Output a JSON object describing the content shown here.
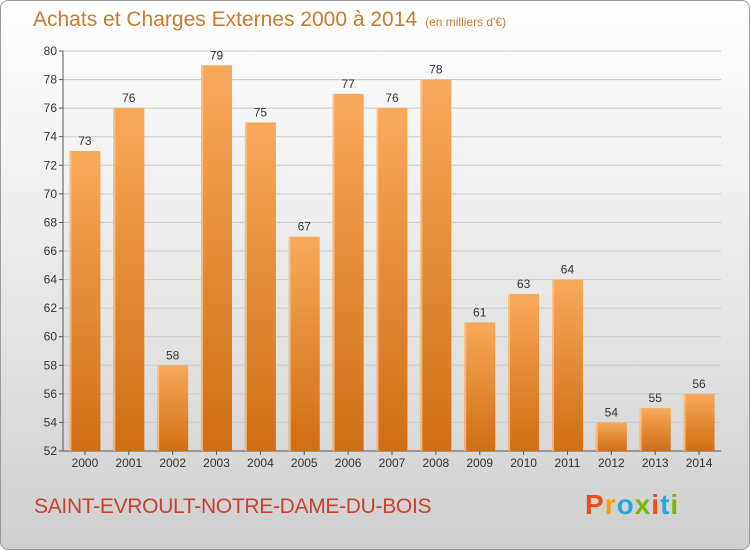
{
  "header": {
    "title": "Achats et Charges Externes 2000 à 2014",
    "subtitle": "(en milliers d'€)"
  },
  "footer": {
    "place": "SAINT-EVROULT-NOTRE-DAME-DU-BOIS",
    "brand": "Proxiti",
    "brand_colors": [
      "#e84e1b",
      "#f5a200",
      "#2aa6de",
      "#7ab800",
      "#e84e1b",
      "#2aa6de",
      "#7ab800"
    ]
  },
  "colors": {
    "bar": "#f0902a",
    "bar_light": "#f7a95a",
    "bar_dark": "#d06e12",
    "text": "#c87a2e",
    "grid": "#c8c8c8"
  },
  "chart_data": {
    "type": "bar",
    "title": "Achats et Charges Externes 2000 à 2014",
    "subtitle": "(en milliers d'€)",
    "categories": [
      "2000",
      "2001",
      "2002",
      "2003",
      "2004",
      "2005",
      "2006",
      "2007",
      "2008",
      "2009",
      "2010",
      "2011",
      "2012",
      "2013",
      "2014"
    ],
    "values": [
      73,
      76,
      58,
      79,
      75,
      67,
      77,
      76,
      78,
      61,
      63,
      64,
      54,
      55,
      56
    ],
    "ylim": [
      52,
      80
    ],
    "yticks": [
      52,
      54,
      56,
      58,
      60,
      62,
      64,
      66,
      68,
      70,
      72,
      74,
      76,
      78,
      80
    ],
    "grid": true,
    "data_labels": true
  }
}
